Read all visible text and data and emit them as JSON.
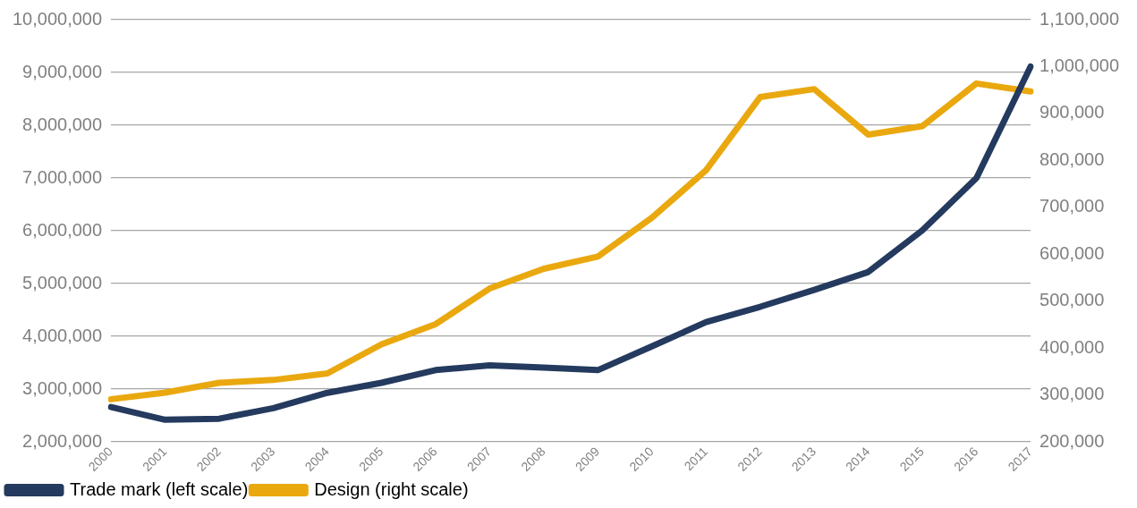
{
  "chart_data": {
    "type": "line",
    "categories": [
      "2000",
      "2001",
      "2002",
      "2003",
      "2004",
      "2005",
      "2006",
      "2007",
      "2008",
      "2009",
      "2010",
      "2011",
      "2012",
      "2013",
      "2014",
      "2015",
      "2016",
      "2017"
    ],
    "series": [
      {
        "name": "Trade mark (left scale)",
        "color": "#243a5e",
        "axis": "y",
        "values": [
          2660000,
          2420000,
          2440000,
          2640000,
          2930000,
          3120000,
          3360000,
          3450000,
          3410000,
          3360000,
          3810000,
          4270000,
          4560000,
          4880000,
          5220000,
          6010000,
          7000000,
          9110000
        ]
      },
      {
        "name": "Design (right scale)",
        "color": "#eaa80f",
        "axis": "y2",
        "values": [
          291000,
          305000,
          326000,
          332000,
          346000,
          408000,
          451000,
          527000,
          569000,
          595000,
          678000,
          779000,
          935000,
          952000,
          855000,
          873000,
          964000,
          947000
        ]
      }
    ],
    "ylim": [
      2000000,
      10000000
    ],
    "yticks": [
      {
        "value": 2000000,
        "label": "2,000,000"
      },
      {
        "value": 3000000,
        "label": "3,000,000"
      },
      {
        "value": 4000000,
        "label": "4,000,000"
      },
      {
        "value": 5000000,
        "label": "5,000,000"
      },
      {
        "value": 6000000,
        "label": "6,000,000"
      },
      {
        "value": 7000000,
        "label": "7,000,000"
      },
      {
        "value": 8000000,
        "label": "8,000,000"
      },
      {
        "value": 9000000,
        "label": "9,000,000"
      },
      {
        "value": 10000000,
        "label": "10,000,000"
      }
    ],
    "y2lim": [
      200000,
      1100000
    ],
    "y2ticks": [
      {
        "value": 200000,
        "label": "200,000"
      },
      {
        "value": 300000,
        "label": "300,000"
      },
      {
        "value": 400000,
        "label": "400,000"
      },
      {
        "value": 500000,
        "label": "500,000"
      },
      {
        "value": 600000,
        "label": "600,000"
      },
      {
        "value": 700000,
        "label": "700,000"
      },
      {
        "value": 800000,
        "label": "800,000"
      },
      {
        "value": 900000,
        "label": "900,000"
      },
      {
        "value": 1000000,
        "label": "1,000,000"
      },
      {
        "value": 1100000,
        "label": "1,100,000"
      }
    ],
    "grid": "y",
    "legend": "bottom",
    "marker": "none",
    "line_style": "solid"
  }
}
